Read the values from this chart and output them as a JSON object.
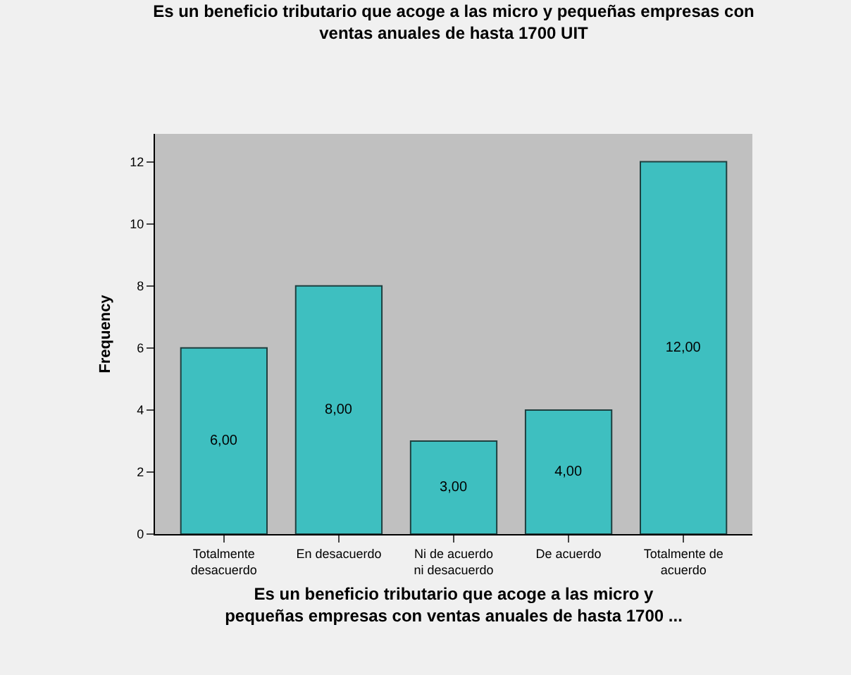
{
  "chart_data": {
    "type": "bar",
    "title": "Es un beneficio tributario que acoge a las micro y pequeñas empresas con\nventas anuales de hasta 1700 UIT",
    "xlabel": "Es un beneficio tributario que acoge a las micro y\npequeñas empresas con ventas anuales de hasta 1700 ...",
    "ylabel": "Frequency",
    "categories": [
      "Totalmente\ndesacuerdo",
      "En desacuerdo",
      "Ni de acuerdo\nni desacuerdo",
      "De acuerdo",
      "Totalmente de\nacuerdo"
    ],
    "values": [
      6,
      8,
      3,
      4,
      12
    ],
    "value_labels": [
      "6,00",
      "8,00",
      "3,00",
      "4,00",
      "12,00"
    ],
    "color": "#3ebfc0",
    "ylim": [
      0,
      12.9
    ],
    "yticks": [
      0,
      2,
      4,
      6,
      8,
      10,
      12
    ],
    "grid": false,
    "legend": false
  }
}
